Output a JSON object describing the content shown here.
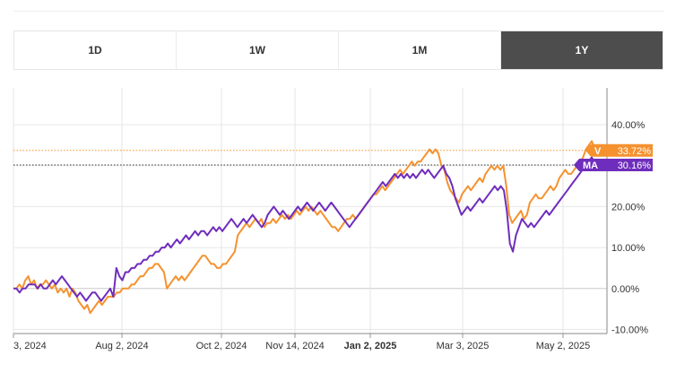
{
  "tabs": [
    {
      "label": "1D",
      "active": false
    },
    {
      "label": "1W",
      "active": false
    },
    {
      "label": "1M",
      "active": false
    },
    {
      "label": "1Y",
      "active": true
    }
  ],
  "colors": {
    "V": "#f5922f",
    "MA": "#6f2dbd",
    "active_tab": "#4d4d4d",
    "grid": "#e6e6e6",
    "zero_line": "#cccccc"
  },
  "chart_data": {
    "type": "line",
    "x_ticks": [
      {
        "label": "3, 2024",
        "bold": false
      },
      {
        "label": "Aug 2, 2024",
        "bold": false
      },
      {
        "label": "Oct 2, 2024",
        "bold": false
      },
      {
        "label": "Nov 14, 2024",
        "bold": false
      },
      {
        "label": "Jan 2, 2025",
        "bold": true
      },
      {
        "label": "Mar 3, 2025",
        "bold": false
      },
      {
        "label": "May 2, 2025",
        "bold": false
      }
    ],
    "y_ticks": [
      "40.00%",
      "30.00%",
      "20.00%",
      "10.00%",
      "0.00%",
      "-10.00%"
    ],
    "y_tick_values": [
      40,
      30,
      20,
      10,
      0,
      -10
    ],
    "ylim": [
      -11,
      49
    ],
    "grid": true,
    "series": [
      {
        "name": "V",
        "badge_label": "V",
        "last_value_label": "33.72%",
        "last_value": 33.72,
        "values": [
          0,
          0,
          1,
          0,
          2,
          3,
          1,
          2,
          0,
          1,
          1,
          2,
          1,
          0,
          1,
          -1,
          0,
          -1,
          0,
          -2,
          0,
          -1,
          -3,
          -4,
          -5,
          -4,
          -6,
          -5,
          -4,
          -3,
          -4,
          -3,
          -2,
          -2,
          -2,
          -1,
          -1,
          0,
          0,
          0,
          1,
          1,
          2,
          3,
          3,
          4,
          5,
          5,
          6,
          6,
          5,
          4,
          0,
          1,
          2,
          3,
          2,
          3,
          2,
          3,
          4,
          5,
          6,
          7,
          8,
          8,
          7,
          6,
          6,
          5,
          5,
          6,
          6,
          7,
          8,
          9,
          13,
          14,
          15,
          16,
          15,
          16,
          17,
          16,
          17,
          15,
          16,
          16,
          17,
          16,
          17,
          18,
          17,
          18,
          17,
          18,
          19,
          18,
          19,
          20,
          19,
          20,
          19,
          18,
          19,
          18,
          17,
          16,
          15,
          15,
          14,
          15,
          16,
          17,
          17,
          18,
          17,
          18,
          19,
          20,
          21,
          22,
          23,
          23,
          24,
          25,
          24,
          25,
          26,
          27,
          28,
          29,
          28,
          29,
          30,
          31,
          30,
          31,
          31,
          32,
          33,
          34,
          33,
          34,
          33,
          30,
          29,
          26,
          24,
          23,
          22,
          21,
          23,
          24,
          25,
          24,
          25,
          26,
          27,
          26,
          28,
          29,
          30,
          29,
          30,
          29,
          30,
          25,
          18,
          16,
          17,
          18,
          19,
          17,
          18,
          21,
          22,
          23,
          22,
          22,
          23,
          24,
          25,
          24,
          25,
          27,
          28,
          29,
          28,
          28,
          29,
          30,
          31,
          32,
          34,
          35,
          36,
          34,
          33,
          33.72
        ]
      },
      {
        "name": "MA",
        "badge_label": "MA",
        "last_value_label": "30.16%",
        "last_value": 30.16,
        "values": [
          0,
          0,
          -1,
          0,
          0,
          1,
          1,
          1,
          0,
          1,
          0,
          0,
          1,
          2,
          1,
          2,
          3,
          2,
          1,
          0,
          -1,
          -2,
          -1,
          -2,
          -3,
          -2,
          -1,
          -1,
          -2,
          -3,
          -2,
          -1,
          0,
          -2,
          5,
          3,
          2,
          4,
          4,
          5,
          5,
          6,
          6,
          7,
          7,
          8,
          8,
          9,
          9,
          10,
          10,
          11,
          10,
          11,
          12,
          11,
          12,
          13,
          12,
          13,
          14,
          13,
          14,
          14,
          13,
          14,
          15,
          14,
          15,
          14,
          15,
          16,
          17,
          16,
          15,
          16,
          17,
          16,
          17,
          18,
          17,
          16,
          15,
          16,
          18,
          19,
          20,
          19,
          18,
          19,
          18,
          17,
          18,
          19,
          20,
          19,
          20,
          21,
          20,
          19,
          20,
          21,
          20,
          19,
          20,
          21,
          20,
          19,
          18,
          17,
          16,
          15,
          16,
          17,
          18,
          19,
          20,
          21,
          22,
          23,
          24,
          25,
          26,
          25,
          26,
          27,
          28,
          27,
          28,
          27,
          28,
          27,
          28,
          27,
          28,
          29,
          28,
          29,
          28,
          27,
          28,
          29,
          30,
          28,
          27,
          25,
          22,
          20,
          18,
          19,
          20,
          19,
          20,
          21,
          22,
          21,
          22,
          23,
          24,
          25,
          24,
          25,
          24,
          19,
          11,
          9,
          13,
          15,
          17,
          16,
          15,
          16,
          15,
          16,
          17,
          18,
          19,
          18,
          19,
          20,
          21,
          22,
          23,
          24,
          25,
          26,
          27,
          28,
          29,
          30,
          31,
          32,
          31,
          30,
          30.16
        ]
      }
    ]
  }
}
